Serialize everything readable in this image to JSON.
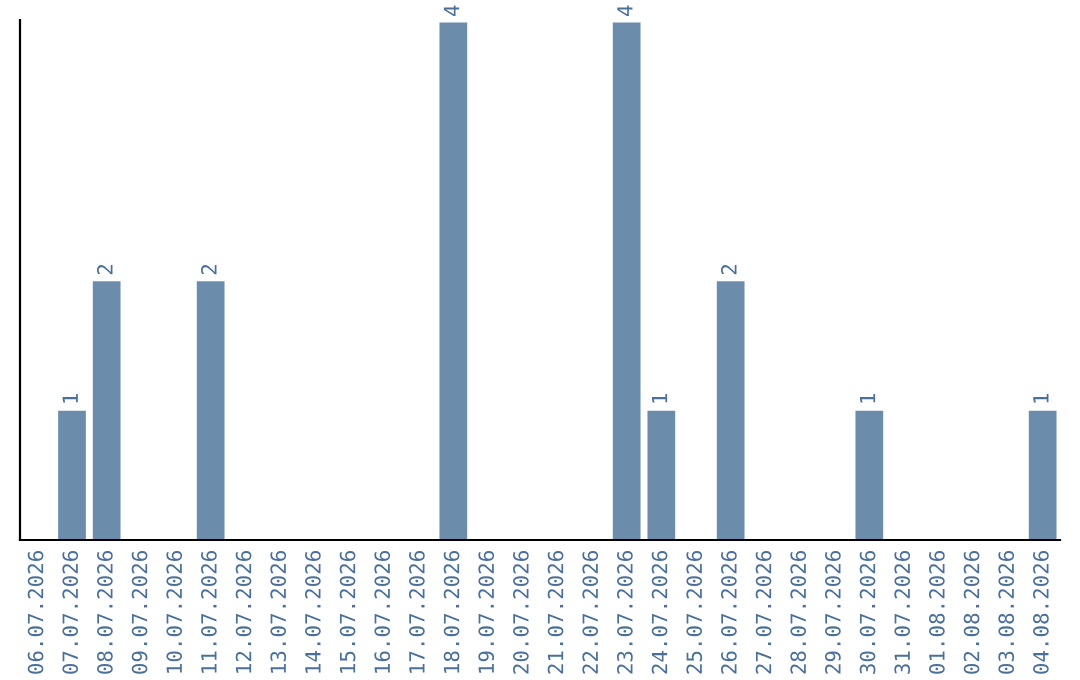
{
  "chart_data": {
    "type": "bar",
    "categories": [
      "06.07.2026",
      "07.07.2026",
      "08.07.2026",
      "09.07.2026",
      "10.07.2026",
      "11.07.2026",
      "12.07.2026",
      "13.07.2026",
      "14.07.2026",
      "15.07.2026",
      "16.07.2026",
      "17.07.2026",
      "18.07.2026",
      "19.07.2026",
      "20.07.2026",
      "21.07.2026",
      "22.07.2026",
      "23.07.2026",
      "24.07.2026",
      "25.07.2026",
      "26.07.2026",
      "27.07.2026",
      "28.07.2026",
      "29.07.2026",
      "30.07.2026",
      "31.07.2026",
      "01.08.2026",
      "02.08.2026",
      "03.08.2026",
      "04.08.2026"
    ],
    "values": [
      0,
      1,
      2,
      0,
      0,
      2,
      0,
      0,
      0,
      0,
      0,
      0,
      4,
      0,
      0,
      0,
      0,
      4,
      1,
      0,
      2,
      0,
      0,
      0,
      1,
      0,
      0,
      0,
      0,
      1
    ],
    "value_labels": [
      null,
      "1",
      "2",
      null,
      null,
      "2",
      null,
      null,
      null,
      null,
      null,
      null,
      "4",
      null,
      null,
      null,
      null,
      "4",
      "1",
      null,
      "2",
      null,
      null,
      null,
      "1",
      null,
      null,
      null,
      null,
      "1"
    ],
    "color": "#6b8cab",
    "grid": false,
    "legend": false,
    "tick_labels": "x"
  }
}
